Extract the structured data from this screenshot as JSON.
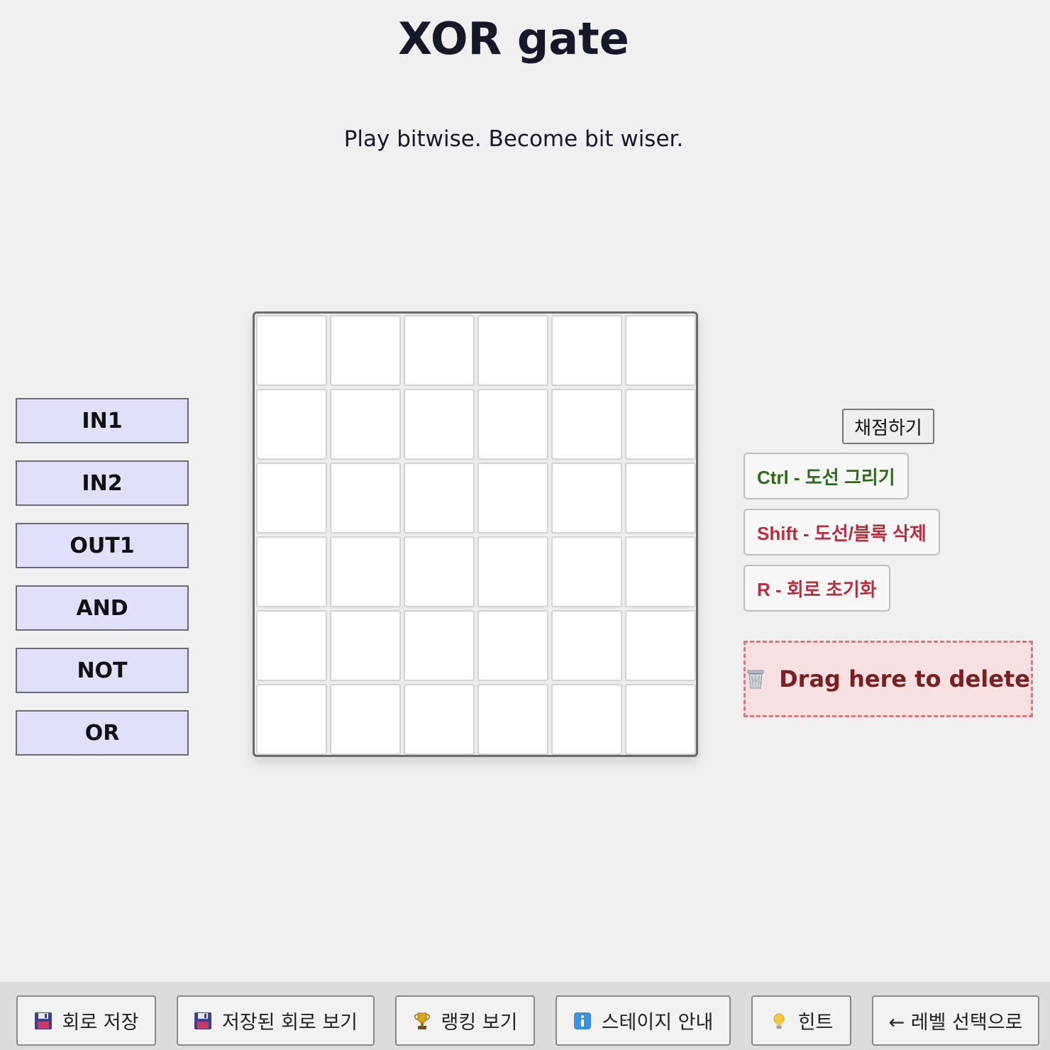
{
  "header": {
    "title": "XOR gate",
    "subtitle": "Play bitwise. Become bit wiser."
  },
  "palette": {
    "items": [
      "IN1",
      "IN2",
      "OUT1",
      "AND",
      "NOT",
      "OR"
    ]
  },
  "board": {
    "rows": 6,
    "cols": 6
  },
  "controls": {
    "grade_label": "채점하기",
    "hints": {
      "ctrl": "Ctrl - 도선 그리기",
      "shift": "Shift - 도선/블록 삭제",
      "r": "R - 회로 초기화"
    },
    "hint_colors": {
      "ctrl": "#2d6a1c",
      "delete": "#b5303f"
    },
    "trash_label": "Drag here to delete",
    "trash_icon": "wastebasket-icon"
  },
  "bottom_bar": {
    "save_circuit": "회로 저장",
    "view_saved": "저장된 회로 보기",
    "ranking": "랭킹 보기",
    "stage_info": "스테이지 안내",
    "hint": "힌트",
    "level_select": "← 레벨 선택으로",
    "icons": {
      "save_circuit": "floppy-disk-icon",
      "view_saved": "floppy-disk-icon",
      "ranking": "trophy-icon",
      "stage_info": "info-icon",
      "hint": "light-bulb-icon"
    }
  }
}
